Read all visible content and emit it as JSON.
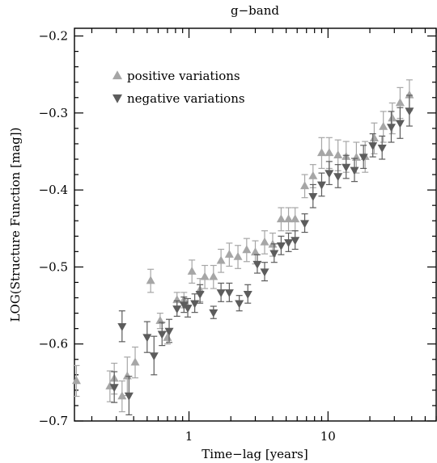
{
  "chart_data": {
    "type": "scatter",
    "title": "g−band",
    "xlabel": "Time−lag [years]",
    "ylabel": "LOG(Structure Function [mag])",
    "x_scale": "log",
    "xlim": [
      0.15,
      60
    ],
    "ylim": [
      -0.7,
      -0.19
    ],
    "x_tick_labels": [
      {
        "x": 1,
        "label": "1"
      },
      {
        "x": 10,
        "label": "10"
      }
    ],
    "y_ticks": [
      -0.7,
      -0.6,
      -0.5,
      -0.4,
      -0.3,
      -0.2
    ],
    "y_tick_labels": [
      "−0.7",
      "−0.6",
      "−0.5",
      "−0.4",
      "−0.3",
      "−0.2"
    ],
    "legend": {
      "position": "top-left"
    },
    "series": [
      {
        "name": "positive variations",
        "marker": "triangle-up",
        "color": "#a6a6a6",
        "points": [
          {
            "x": 0.155,
            "y": -0.648,
            "err": 0.02
          },
          {
            "x": 0.27,
            "y": -0.655,
            "err": 0.02
          },
          {
            "x": 0.29,
            "y": -0.645,
            "err": 0.02
          },
          {
            "x": 0.33,
            "y": -0.668,
            "err": 0.02
          },
          {
            "x": 0.36,
            "y": -0.642,
            "err": 0.025
          },
          {
            "x": 0.41,
            "y": -0.624,
            "err": 0.02
          },
          {
            "x": 0.53,
            "y": -0.518,
            "err": 0.015
          },
          {
            "x": 0.62,
            "y": -0.57,
            "err": 0.01
          },
          {
            "x": 0.7,
            "y": -0.592,
            "err": 0.008
          },
          {
            "x": 0.82,
            "y": -0.543,
            "err": 0.01
          },
          {
            "x": 0.92,
            "y": -0.543,
            "err": 0.01
          },
          {
            "x": 1.05,
            "y": -0.506,
            "err": 0.015
          },
          {
            "x": 1.2,
            "y": -0.53,
            "err": 0.015
          },
          {
            "x": 1.3,
            "y": -0.513,
            "err": 0.015
          },
          {
            "x": 1.5,
            "y": -0.513,
            "err": 0.015
          },
          {
            "x": 1.7,
            "y": -0.492,
            "err": 0.015
          },
          {
            "x": 1.95,
            "y": -0.484,
            "err": 0.015
          },
          {
            "x": 2.25,
            "y": -0.487,
            "err": 0.015
          },
          {
            "x": 2.6,
            "y": -0.478,
            "err": 0.015
          },
          {
            "x": 3.0,
            "y": -0.481,
            "err": 0.015
          },
          {
            "x": 3.5,
            "y": -0.468,
            "err": 0.015
          },
          {
            "x": 4.0,
            "y": -0.471,
            "err": 0.015
          },
          {
            "x": 4.6,
            "y": -0.438,
            "err": 0.015
          },
          {
            "x": 5.2,
            "y": -0.438,
            "err": 0.015
          },
          {
            "x": 5.8,
            "y": -0.438,
            "err": 0.015
          },
          {
            "x": 6.8,
            "y": -0.395,
            "err": 0.015
          },
          {
            "x": 7.8,
            "y": -0.382,
            "err": 0.015
          },
          {
            "x": 9.0,
            "y": -0.352,
            "err": 0.02
          },
          {
            "x": 10.2,
            "y": -0.352,
            "err": 0.02
          },
          {
            "x": 11.8,
            "y": -0.355,
            "err": 0.02
          },
          {
            "x": 13.5,
            "y": -0.357,
            "err": 0.02
          },
          {
            "x": 16.0,
            "y": -0.358,
            "err": 0.02
          },
          {
            "x": 18.5,
            "y": -0.357,
            "err": 0.02
          },
          {
            "x": 21.5,
            "y": -0.333,
            "err": 0.02
          },
          {
            "x": 25.0,
            "y": -0.318,
            "err": 0.02
          },
          {
            "x": 29.0,
            "y": -0.307,
            "err": 0.02
          },
          {
            "x": 33.0,
            "y": -0.287,
            "err": 0.02
          },
          {
            "x": 38.5,
            "y": -0.277,
            "err": 0.02
          }
        ]
      },
      {
        "name": "negative variations",
        "marker": "triangle-down",
        "color": "#5c5c5c",
        "points": [
          {
            "x": 0.29,
            "y": -0.656,
            "err": 0.02
          },
          {
            "x": 0.33,
            "y": -0.577,
            "err": 0.02
          },
          {
            "x": 0.37,
            "y": -0.667,
            "err": 0.025
          },
          {
            "x": 0.5,
            "y": -0.591,
            "err": 0.02
          },
          {
            "x": 0.56,
            "y": -0.615,
            "err": 0.025
          },
          {
            "x": 0.64,
            "y": -0.587,
            "err": 0.015
          },
          {
            "x": 0.72,
            "y": -0.583,
            "err": 0.015
          },
          {
            "x": 0.82,
            "y": -0.554,
            "err": 0.01
          },
          {
            "x": 0.92,
            "y": -0.549,
            "err": 0.01
          },
          {
            "x": 0.98,
            "y": -0.553,
            "err": 0.012
          },
          {
            "x": 1.1,
            "y": -0.547,
            "err": 0.012
          },
          {
            "x": 1.2,
            "y": -0.535,
            "err": 0.012
          },
          {
            "x": 1.5,
            "y": -0.559,
            "err": 0.008
          },
          {
            "x": 1.7,
            "y": -0.533,
            "err": 0.012
          },
          {
            "x": 1.95,
            "y": -0.533,
            "err": 0.012
          },
          {
            "x": 2.3,
            "y": -0.547,
            "err": 0.01
          },
          {
            "x": 2.65,
            "y": -0.535,
            "err": 0.012
          },
          {
            "x": 3.1,
            "y": -0.496,
            "err": 0.012
          },
          {
            "x": 3.5,
            "y": -0.506,
            "err": 0.012
          },
          {
            "x": 4.1,
            "y": -0.482,
            "err": 0.012
          },
          {
            "x": 4.6,
            "y": -0.472,
            "err": 0.012
          },
          {
            "x": 5.2,
            "y": -0.468,
            "err": 0.012
          },
          {
            "x": 5.8,
            "y": -0.465,
            "err": 0.012
          },
          {
            "x": 6.8,
            "y": -0.443,
            "err": 0.012
          },
          {
            "x": 7.8,
            "y": -0.408,
            "err": 0.015
          },
          {
            "x": 9.0,
            "y": -0.393,
            "err": 0.015
          },
          {
            "x": 10.2,
            "y": -0.378,
            "err": 0.015
          },
          {
            "x": 11.8,
            "y": -0.382,
            "err": 0.015
          },
          {
            "x": 13.5,
            "y": -0.37,
            "err": 0.015
          },
          {
            "x": 15.5,
            "y": -0.374,
            "err": 0.015
          },
          {
            "x": 18.0,
            "y": -0.357,
            "err": 0.015
          },
          {
            "x": 21.0,
            "y": -0.342,
            "err": 0.015
          },
          {
            "x": 24.5,
            "y": -0.345,
            "err": 0.015
          },
          {
            "x": 28.5,
            "y": -0.318,
            "err": 0.02
          },
          {
            "x": 33.0,
            "y": -0.313,
            "err": 0.02
          },
          {
            "x": 38.5,
            "y": -0.297,
            "err": 0.02
          }
        ]
      }
    ]
  }
}
